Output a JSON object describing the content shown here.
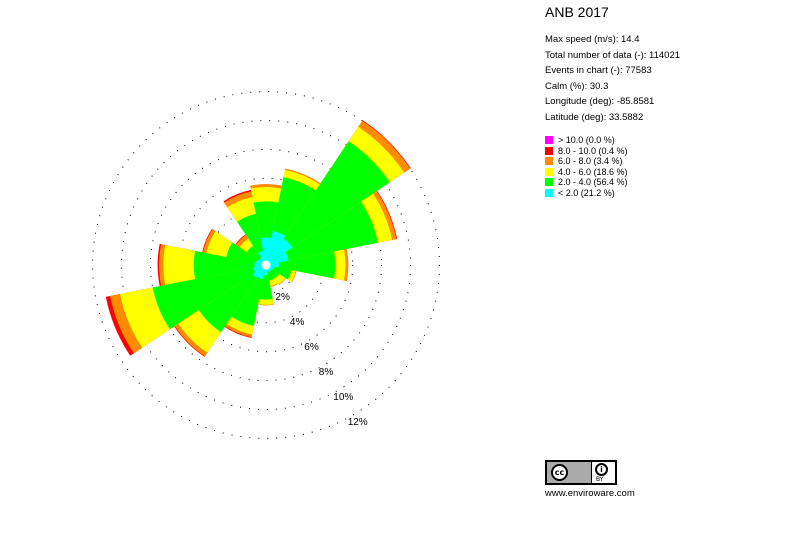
{
  "title": "ANB 2017",
  "stats": [
    "Max speed (m/s): 14.4",
    "Total number of data (-): 114021",
    "Events in chart (-): 77583",
    "Calm (%): 30.3",
    "Longitude (deg): -85.8581",
    "Latitude  (deg): 33.5882"
  ],
  "legend": [
    {
      "label": "> 10.0 (0.0 %)",
      "color": "#ff00ff"
    },
    {
      "label": "8.0 - 10.0 (0.4 %)",
      "color": "#ff0000"
    },
    {
      "label": "6.0 - 8.0 (3.4 %)",
      "color": "#ff8c00"
    },
    {
      "label": "4.0 - 6.0 (18.6 %)",
      "color": "#ffff00"
    },
    {
      "label": "2.0 - 4.0 (56.4 %)",
      "color": "#00ff00"
    },
    {
      "label": "< 2.0 (21.2 %)",
      "color": "#00ffff"
    }
  ],
  "license": {
    "cc_text": "cc",
    "by_icon": "i",
    "by_text": "BY",
    "website": "www.enviroware.com"
  },
  "chart_data": {
    "type": "wind-rose",
    "sectors": 16,
    "directions_deg": [
      0,
      22.5,
      45,
      67.5,
      90,
      112.5,
      135,
      157.5,
      180,
      202.5,
      225,
      247.5,
      270,
      292.5,
      315,
      337.5
    ],
    "radial_ticks": [
      2,
      4,
      6,
      8,
      10,
      12
    ],
    "radial_tick_labels": [
      "2%",
      "4%",
      "6%",
      "8%",
      "10%",
      "12%"
    ],
    "speed_classes": [
      {
        "label": "< 2.0",
        "color": "#00ffff"
      },
      {
        "label": "2.0 - 4.0",
        "color": "#00ff00"
      },
      {
        "label": "4.0 - 6.0",
        "color": "#ffff00"
      },
      {
        "label": "6.0 - 8.0",
        "color": "#ff8c00"
      },
      {
        "label": "8.0 - 10.0",
        "color": "#ff0000"
      },
      {
        "label": "> 10.0",
        "color": "#ff00ff"
      }
    ],
    "cumulative_percent": [
      [
        1.9,
        4.4,
        5.4,
        5.6,
        5.6,
        5.6
      ],
      [
        2.4,
        6.2,
        6.7,
        6.8,
        6.8,
        6.8
      ],
      [
        2.2,
        10.3,
        11.5,
        12.0,
        12.05,
        12.05
      ],
      [
        1.6,
        7.9,
        8.9,
        9.2,
        9.25,
        9.25
      ],
      [
        0.9,
        4.8,
        5.5,
        5.7,
        5.7,
        5.7
      ],
      [
        0.6,
        1.8,
        2.1,
        2.15,
        2.15,
        2.15
      ],
      [
        0.5,
        1.1,
        1.6,
        1.65,
        1.65,
        1.65
      ],
      [
        0.5,
        1.1,
        1.5,
        1.55,
        1.55,
        1.55
      ],
      [
        0.7,
        2.4,
        2.75,
        2.8,
        2.8,
        2.8
      ],
      [
        1.0,
        4.3,
        4.9,
        5.1,
        5.15,
        5.15
      ],
      [
        1.1,
        5.6,
        7.3,
        7.6,
        7.65,
        7.65
      ],
      [
        0.9,
        8.0,
        10.3,
        11.0,
        11.3,
        11.3
      ],
      [
        0.8,
        5.0,
        7.1,
        7.4,
        7.5,
        7.5
      ],
      [
        0.7,
        2.8,
        4.2,
        4.45,
        4.5,
        4.5
      ],
      [
        0.6,
        1.6,
        2.2,
        2.5,
        2.55,
        2.55
      ],
      [
        1.0,
        3.6,
        4.8,
        5.2,
        5.3,
        5.3
      ]
    ]
  }
}
